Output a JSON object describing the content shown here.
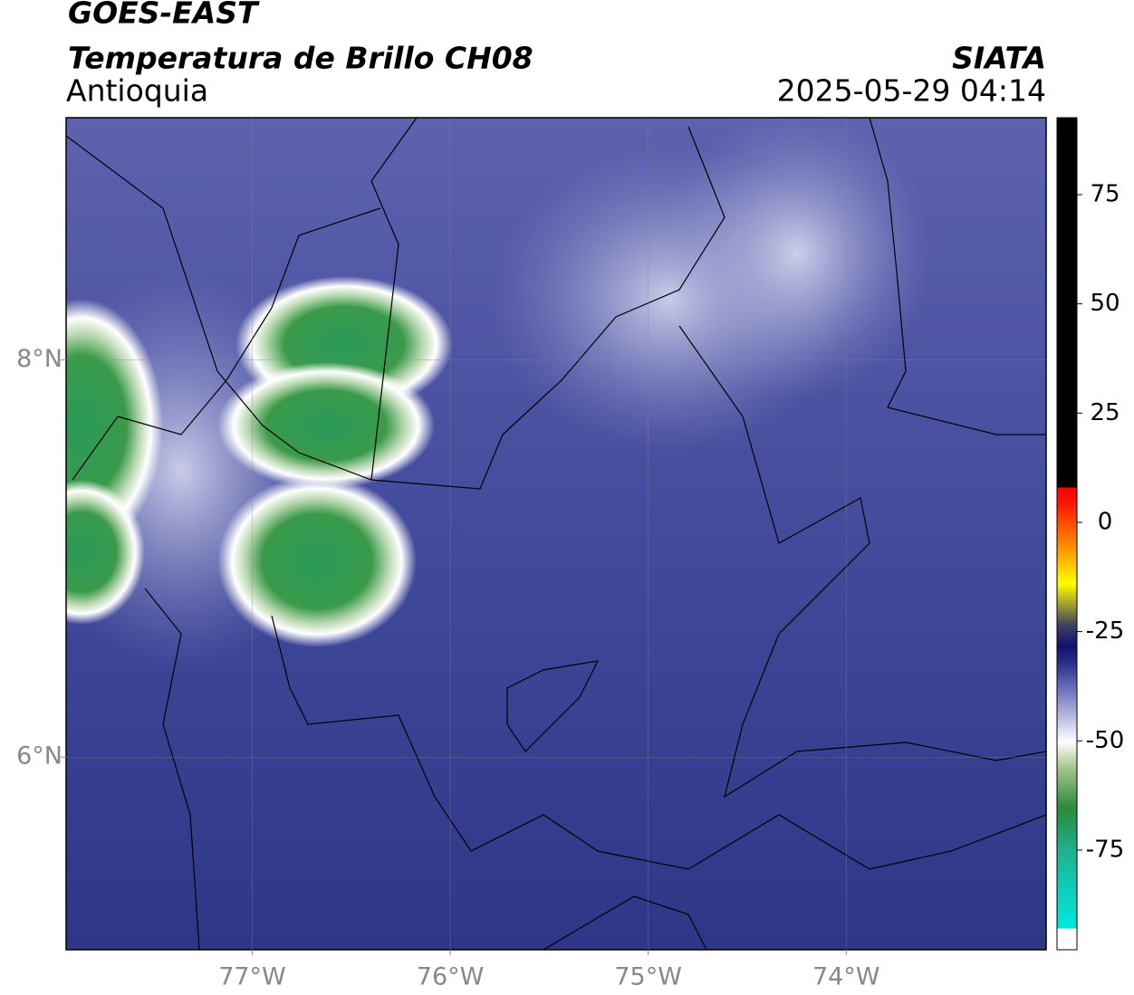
{
  "header": {
    "satellite": "GOES-EAST",
    "title": "Temperatura de Brillo CH08",
    "region": "Antioquia",
    "organization": "SIATA",
    "datetime": "2025-05-29 04:14"
  },
  "map": {
    "xlim": [
      -77.94,
      -72.99
    ],
    "ylim": [
      5.03,
      9.22
    ],
    "xticks": [
      {
        "value": -77,
        "label": "77°W"
      },
      {
        "value": -76,
        "label": "76°W"
      },
      {
        "value": -75,
        "label": "75°W"
      },
      {
        "value": -74,
        "label": "74°W"
      }
    ],
    "yticks": [
      {
        "value": 8,
        "label": "8°N"
      },
      {
        "value": 6,
        "label": "6°N"
      }
    ],
    "grid": true
  },
  "colorbar": {
    "lim": [
      -97.8,
      92.6
    ],
    "ticks": [
      75,
      50,
      25,
      0,
      -25,
      -50,
      -75
    ]
  }
}
